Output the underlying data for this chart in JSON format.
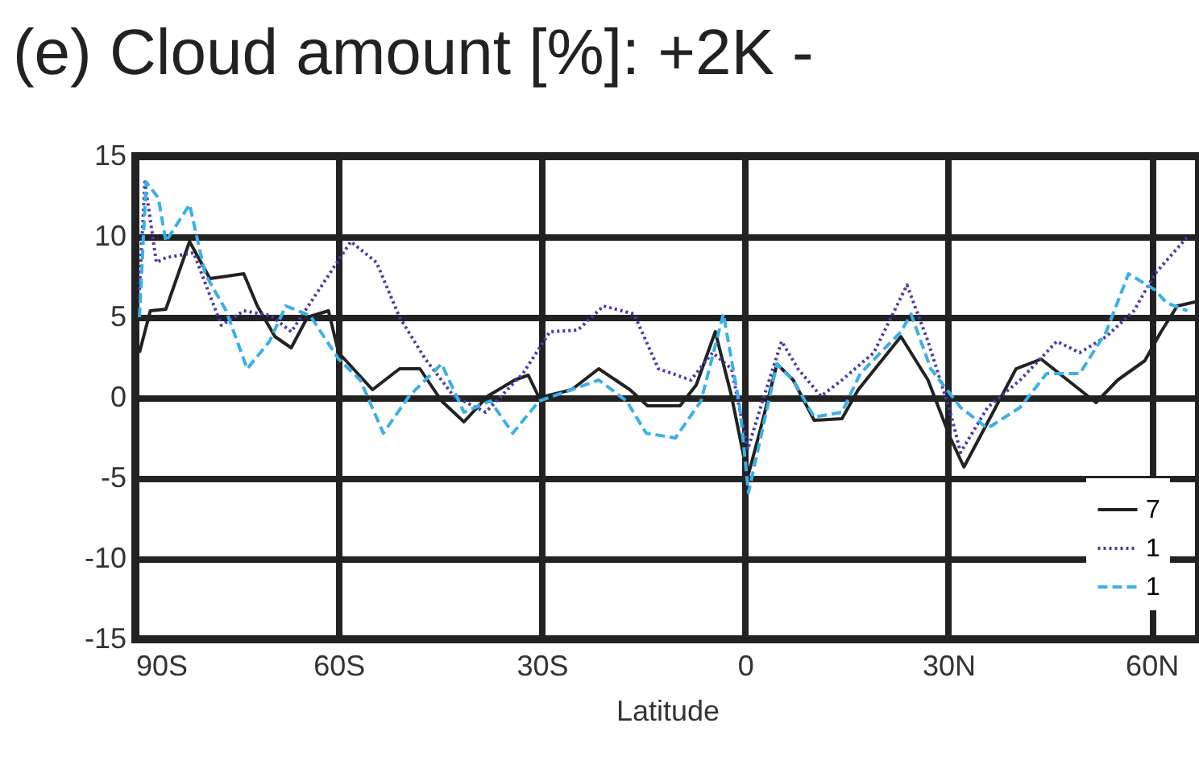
{
  "chart_data": {
    "type": "line",
    "title": "(e) Cloud amount [%]: +2K -",
    "xlabel": "Latitude",
    "xlim": [
      -90,
      67
    ],
    "ylim": [
      -15,
      15
    ],
    "xticks": [
      {
        "value": -90,
        "label": "90S"
      },
      {
        "value": -60,
        "label": "60S"
      },
      {
        "value": -30,
        "label": "30S"
      },
      {
        "value": 0,
        "label": "0"
      },
      {
        "value": 30,
        "label": "30N"
      },
      {
        "value": 60,
        "label": "60N"
      }
    ],
    "yticks": [
      -15,
      -10,
      -5,
      0,
      5,
      10,
      15
    ],
    "grid": true,
    "legend": "bottom right",
    "series": [
      {
        "name": "7",
        "color": "#222222",
        "line_style": "solid",
        "x": [
          -89.4,
          -87.8,
          -85.5,
          -82,
          -79,
          -74,
          -72,
          -69.4,
          -67,
          -64.6,
          -61.5,
          -60,
          -55,
          -51,
          -48,
          -44.8,
          -41.5,
          -38,
          -34,
          -32,
          -30.4,
          -25.6,
          -21.6,
          -17,
          -14.4,
          -9.6,
          -7.2,
          -4.4,
          -2,
          0.4,
          2.3,
          4.7,
          7.1,
          10.2,
          14.3,
          16.7,
          23,
          27,
          30.3,
          32.3,
          36.6,
          40,
          43.7,
          48.5,
          51.8,
          55,
          59,
          61.4,
          63.8,
          67
        ],
        "values": [
          2.8,
          5.4,
          5.5,
          9.7,
          7.4,
          7.7,
          5.7,
          3.8,
          3.1,
          5,
          5.4,
          2.8,
          0.5,
          1.8,
          1.8,
          -0.2,
          -1.5,
          0.1,
          1.1,
          1.4,
          0,
          0.5,
          1.8,
          0.5,
          -0.5,
          -0.5,
          0.8,
          4.1,
          0.1,
          -4.9,
          -1.9,
          2.1,
          1.1,
          -1.4,
          -1.3,
          0.5,
          3.8,
          1.1,
          -2.5,
          -4.3,
          -0.9,
          1.8,
          2.4,
          0.8,
          -0.3,
          1.1,
          2.3,
          4.1,
          5.7,
          6
        ]
      },
      {
        "name": "1",
        "color": "#4a3aa8",
        "line_style": "dotted",
        "x": [
          -89.4,
          -88.6,
          -86.9,
          -85.5,
          -81.4,
          -77.3,
          -74,
          -70,
          -67,
          -64,
          -58.2,
          -54.4,
          -51,
          -47.2,
          -43,
          -38.3,
          -32.8,
          -28.8,
          -24.7,
          -20.9,
          -16.4,
          -12.8,
          -8,
          -4.8,
          -2,
          0.4,
          2.8,
          5.4,
          7.8,
          11.2,
          14.3,
          19,
          23.9,
          27,
          30.3,
          31.8,
          35.8,
          40.6,
          46,
          49.4,
          53.3,
          57.4,
          60.5,
          65.3
        ],
        "values": [
          6.7,
          13.4,
          8.4,
          8.7,
          9,
          4.5,
          5.4,
          5.1,
          4.1,
          6,
          9.7,
          8.4,
          5,
          2.4,
          0.1,
          -0.9,
          1.5,
          4.1,
          4.2,
          5.7,
          5.2,
          1.8,
          1.1,
          2.8,
          1.8,
          -3.2,
          0.1,
          3.5,
          1.8,
          0.1,
          1.1,
          2.8,
          7,
          3.5,
          -0.9,
          -3.4,
          -0.6,
          1.1,
          3.5,
          2.8,
          3.8,
          5.4,
          7.7,
          10
        ]
      },
      {
        "name": "1",
        "color": "#3ab0e8",
        "line_style": "dashed",
        "x": [
          -89.4,
          -88.4,
          -86.6,
          -85.5,
          -82,
          -79.7,
          -76.6,
          -73.5,
          -70.2,
          -67.8,
          -64.2,
          -60,
          -56.8,
          -53.4,
          -49.6,
          -44.8,
          -41.5,
          -37.6,
          -34.3,
          -30.4,
          -25.6,
          -21.6,
          -17.5,
          -14.6,
          -10.3,
          -6.5,
          -3.2,
          -0.8,
          0.5,
          4.7,
          7.1,
          10.2,
          14.3,
          17,
          23,
          24.5,
          27.4,
          31.8,
          35.8,
          40.6,
          44.5,
          49.4,
          53.3,
          56.6,
          60.5,
          62.2,
          65.3
        ],
        "values": [
          5,
          13.4,
          12.4,
          9.7,
          12,
          7.7,
          5.4,
          1.8,
          3.5,
          5.7,
          5.1,
          2.4,
          1.1,
          -2.2,
          0.1,
          2.1,
          -0.9,
          -0.2,
          -2.2,
          -0.2,
          0.5,
          1.1,
          -0.2,
          -2.2,
          -2.5,
          -0.2,
          5.2,
          -0.5,
          -5.9,
          2.1,
          1.1,
          -1.2,
          -0.9,
          1.5,
          4.1,
          5.2,
          1.8,
          -0.6,
          -1.9,
          -0.6,
          1.5,
          1.5,
          4.1,
          7.7,
          6.7,
          5.9,
          5.4
        ]
      }
    ]
  }
}
